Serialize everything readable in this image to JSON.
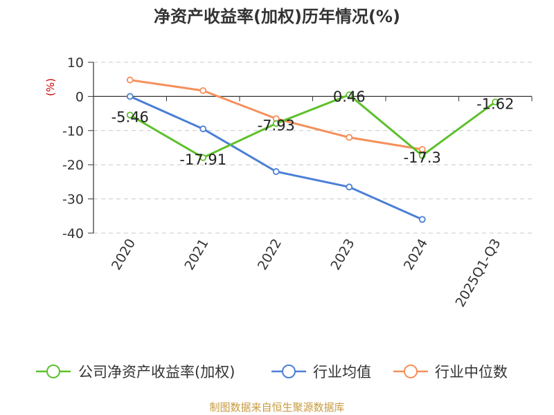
{
  "chart_data": {
    "type": "line",
    "title": "净资产收益率(加权)历年情况(%)",
    "ylabel": "(%)",
    "ylim": [
      -40,
      10
    ],
    "yticks": [
      10,
      0,
      -10,
      -20,
      -30,
      -40
    ],
    "categories": [
      "2020",
      "2021",
      "2022",
      "2023",
      "2024",
      "2025Q1-Q3"
    ],
    "grid": true,
    "legend_position": "bottom",
    "series": [
      {
        "name": "公司净资产收益率(加权)",
        "color": "#5cc02b",
        "values": [
          -5.46,
          -17.91,
          -7.93,
          0.46,
          -17.3,
          -1.62
        ],
        "labels": [
          "-5.46",
          "-17.91",
          "-7.93",
          "0.46",
          "-17.3",
          "-1.62"
        ]
      },
      {
        "name": "行业均值",
        "color": "#4a7fd6",
        "values": [
          0,
          -9.5,
          -22,
          -26.5,
          -36,
          null
        ]
      },
      {
        "name": "行业中位数",
        "color": "#f58f5a",
        "values": [
          4.8,
          1.7,
          -6.5,
          -12,
          -15.5,
          null
        ]
      }
    ],
    "source": "制图数据来自恒生聚源数据库"
  }
}
